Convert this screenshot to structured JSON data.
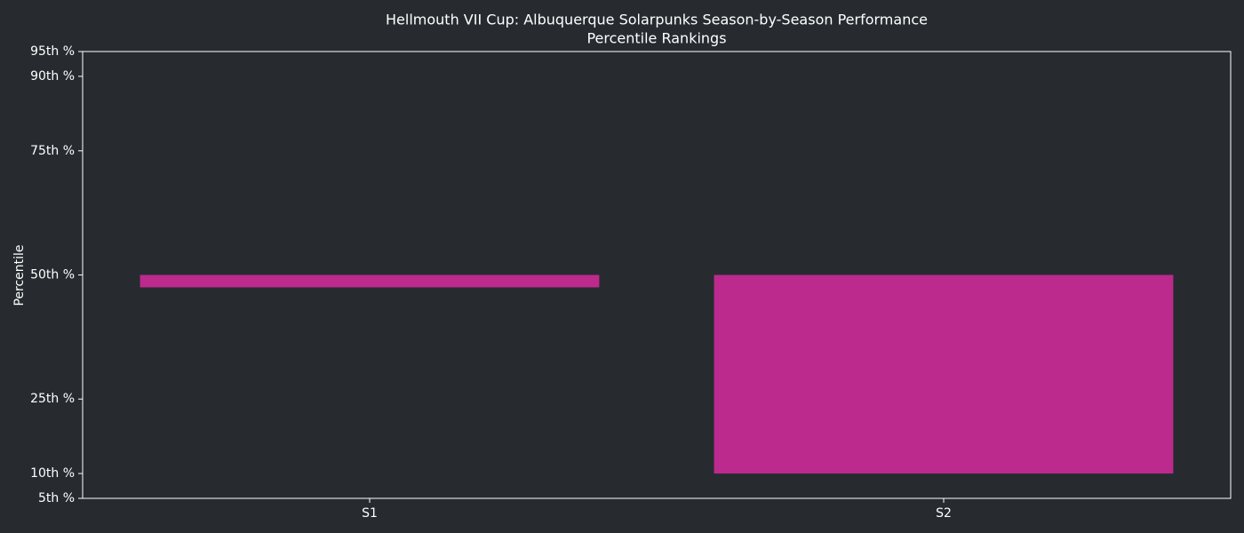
{
  "chart_data": {
    "type": "bar",
    "title": "Hellmouth VII Cup: Albuquerque Solarpunks Season-by-Season Performance",
    "subtitle": "Percentile Rankings",
    "y_label": "Percentile",
    "categories": [
      "S1",
      "S2"
    ],
    "values": [
      47.5,
      10
    ],
    "bar_bottom": 50,
    "color": "#bc2a8d",
    "ylim": [
      5,
      95
    ],
    "yticks": [
      {
        "value": 5,
        "label": "5th %"
      },
      {
        "value": 10,
        "label": "10th %"
      },
      {
        "value": 25,
        "label": "25th %"
      },
      {
        "value": 50,
        "label": "50th %"
      },
      {
        "value": 75,
        "label": "75th %"
      },
      {
        "value": 90,
        "label": "90th %"
      },
      {
        "value": 95,
        "label": "95th %"
      }
    ],
    "grid": false
  }
}
